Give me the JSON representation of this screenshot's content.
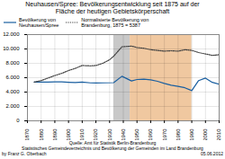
{
  "chart_data": {
    "type": "line",
    "title": "Neuhausen/Spree: Bevölkerungsentwicklung seit 1875 auf der\nFläche der heutigen Gebietskörperschaft",
    "series": [
      {
        "name": "Bevölkerung von\nNeuhausen/Spree",
        "color": "#1a5fa0",
        "line_style": "solid",
        "x": [
          1875,
          1880,
          1885,
          1890,
          1895,
          1900,
          1905,
          1910,
          1916,
          1920,
          1925,
          1933,
          1939,
          1946,
          1950,
          1955,
          1960,
          1965,
          1970,
          1975,
          1980,
          1985,
          1990,
          1995,
          2000,
          2005,
          2010
        ],
        "values": [
          5387,
          5380,
          5390,
          5430,
          5410,
          5370,
          5340,
          5380,
          5280,
          5260,
          5280,
          5310,
          6200,
          5550,
          5750,
          5800,
          5700,
          5500,
          5200,
          4950,
          4800,
          4600,
          4200,
          5600,
          5950,
          5350,
          5100
        ]
      },
      {
        "name": "Normalisierte Bevölkerung von\nBrandenburg, 1875 = 5387",
        "color": "#404040",
        "line_style": "dotted",
        "x": [
          1875,
          1880,
          1890,
          1895,
          1900,
          1905,
          1910,
          1916,
          1920,
          1925,
          1930,
          1933,
          1939,
          1946,
          1950,
          1955,
          1960,
          1965,
          1970,
          1975,
          1980,
          1985,
          1990,
          1995,
          2000,
          2005,
          2010
        ],
        "values": [
          5387,
          5600,
          6300,
          6600,
          7000,
          7300,
          7700,
          7650,
          7700,
          8000,
          8500,
          9000,
          10300,
          10400,
          10200,
          10100,
          9900,
          9800,
          9700,
          9750,
          9700,
          9900,
          9800,
          9500,
          9300,
          9100,
          9200
        ]
      }
    ],
    "spans": [
      {
        "start": 1933,
        "end": 1945,
        "color": "#c8c8c8"
      },
      {
        "start": 1945,
        "end": 1990,
        "color": "#f0c8a0"
      }
    ],
    "xlim": [
      1870,
      2010
    ],
    "xticks": [
      1870,
      1880,
      1890,
      1900,
      1910,
      1920,
      1930,
      1940,
      1950,
      1960,
      1970,
      1980,
      1990,
      2000,
      2010
    ],
    "ylim": [
      0,
      12000
    ],
    "yticks": [
      0,
      {
        "value": 2000,
        "label": "2.000"
      },
      {
        "value": 4000,
        "label": "4.000"
      },
      {
        "value": 6000,
        "label": "6.000"
      },
      {
        "value": 8000,
        "label": "8.000"
      },
      {
        "value": 10000,
        "label": "10.000"
      },
      {
        "value": 12000,
        "label": "12.000"
      }
    ],
    "grid": true,
    "legend": "upper left",
    "source": [
      "Quelle: Amt für Statistik Berlin-Brandenburg",
      "Statistisches Gemeindeverzeichnis und Bevölkerung der Gemeinden im Land Brandenburg"
    ],
    "author": "by Franz G. Oberbach",
    "date": "05.06.2012"
  }
}
